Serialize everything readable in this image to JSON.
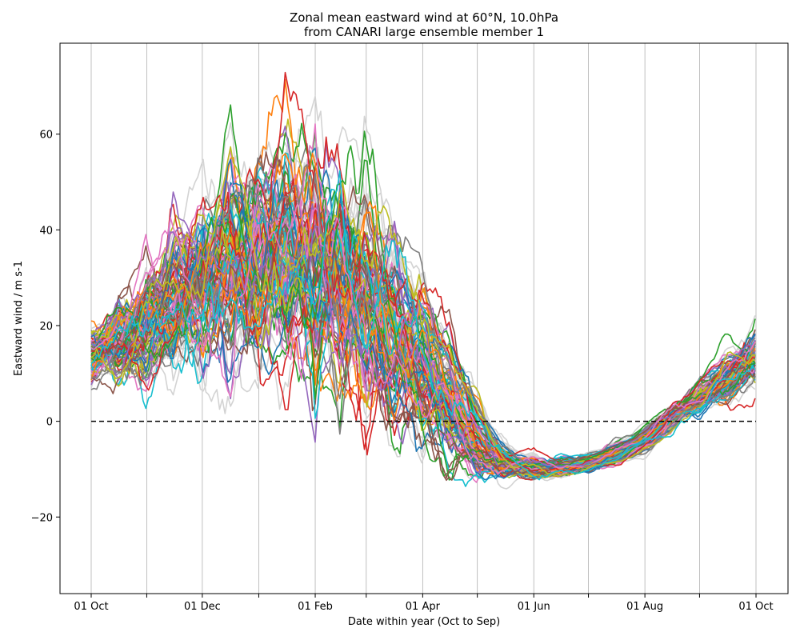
{
  "chart_data": {
    "type": "line",
    "title": "Zonal mean eastward wind at 60°N, 10.0hPa",
    "subtitle": "from CANARI large ensemble member 1",
    "xlabel": "Date within year (Oct to Sep)",
    "ylabel": "Eastward wind / m s-1",
    "x_range": [
      "01 Oct",
      "01 Oct (next year)"
    ],
    "ylim": [
      -36,
      79
    ],
    "x_tick_labels": [
      "01 Oct",
      "01 Dec",
      "01 Feb",
      "01 Apr",
      "01 Jun",
      "01 Aug",
      "01 Oct"
    ],
    "x_tick_days": [
      0,
      61,
      123,
      182,
      243,
      304,
      365
    ],
    "x_gridline_days": [
      0,
      30.5,
      61,
      92,
      123,
      151,
      182,
      212,
      243,
      273,
      304,
      334,
      365
    ],
    "y_ticks": [
      -20,
      0,
      20,
      40,
      60
    ],
    "y_tick_labels": [
      "−20",
      "0",
      "20",
      "40",
      "60"
    ],
    "grid": "vertical-month-lines",
    "zero_line": {
      "y": 0,
      "style": "dashed",
      "color": "#000000"
    },
    "background_series_color": "#d3d3d3",
    "series_colors": [
      "#1f77b4",
      "#ff7f0e",
      "#2ca02c",
      "#d62728",
      "#9467bd",
      "#8c564b",
      "#e377c2",
      "#7f7f7f",
      "#bcbd22",
      "#17becf"
    ],
    "anchor_days": [
      0,
      15,
      30,
      45,
      61,
      76,
      92,
      107,
      123,
      137,
      151,
      166,
      182,
      197,
      212,
      227,
      243,
      258,
      273,
      288,
      304,
      319,
      334,
      349,
      365
    ],
    "ensemble_mean": [
      14,
      16,
      19,
      24,
      29,
      33,
      36,
      36,
      33,
      30,
      26,
      20,
      12,
      4,
      -5,
      -9,
      -10,
      -10,
      -9,
      -7,
      -4,
      1,
      5,
      9,
      13
    ],
    "ensemble_spread": [
      4,
      6,
      8,
      10,
      12,
      14,
      15,
      16,
      17,
      16,
      15,
      13,
      10,
      7,
      4,
      2,
      1.5,
      1.2,
      1,
      1,
      1,
      1.5,
      2,
      3,
      4
    ],
    "n_background_members": 40,
    "n_highlighted_members": 80
  }
}
